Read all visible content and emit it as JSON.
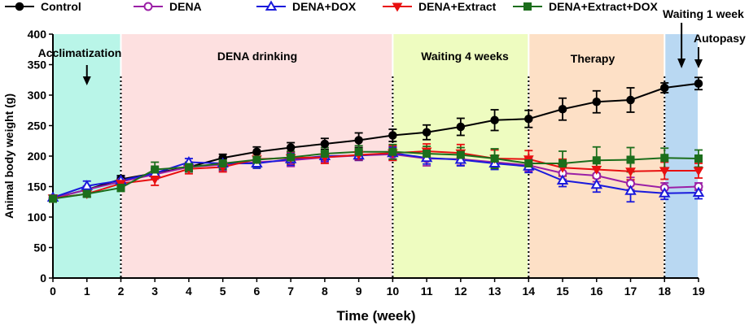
{
  "chart_data": {
    "type": "line",
    "title": "",
    "xlabel": "Time (week)",
    "ylabel": "Animal body weight (g)",
    "xlim": [
      0,
      19
    ],
    "ylim": [
      0,
      400
    ],
    "x_ticks": [
      0,
      1,
      2,
      3,
      4,
      5,
      6,
      7,
      8,
      9,
      10,
      11,
      12,
      13,
      14,
      15,
      16,
      17,
      18,
      19
    ],
    "y_ticks": [
      0,
      50,
      100,
      150,
      200,
      250,
      300,
      350,
      400
    ],
    "x": [
      0,
      1,
      2,
      3,
      4,
      5,
      6,
      7,
      8,
      9,
      10,
      11,
      12,
      13,
      14,
      15,
      16,
      17,
      18,
      19
    ],
    "phases": [
      {
        "label": "Acclimatization",
        "start": 0,
        "end": 2,
        "color": "#b9f5e8"
      },
      {
        "label": "DENA drinking",
        "start": 2,
        "end": 10,
        "color": "#fde0e0"
      },
      {
        "label": "Waiting 4 weeks",
        "start": 10,
        "end": 14,
        "color": "#eefcc0"
      },
      {
        "label": "Therapy",
        "start": 14,
        "end": 18,
        "color": "#fde0c6"
      },
      {
        "label": "",
        "start": 18,
        "end": 19,
        "color": "#b9d8f2"
      }
    ],
    "phase_dividers": [
      2,
      10,
      14,
      18
    ],
    "annotations": [
      {
        "text": "Waiting 1 week",
        "x": 18.5
      },
      {
        "text": "Autopasy",
        "x": 19
      }
    ],
    "series": [
      {
        "name": "Control",
        "color": "#000000",
        "marker": "circle",
        "values": [
          131,
          145,
          162,
          172,
          182,
          197,
          207,
          214,
          220,
          226,
          234,
          239,
          248,
          259,
          261,
          277,
          289,
          292,
          312,
          319
        ],
        "errors": [
          4,
          5,
          6,
          6,
          6,
          6,
          8,
          8,
          9,
          12,
          10,
          12,
          14,
          17,
          14,
          18,
          18,
          20,
          8,
          10
        ]
      },
      {
        "name": "DENA",
        "color": "#9b1fa6",
        "marker": "open-circle",
        "values": [
          131,
          145,
          158,
          170,
          182,
          186,
          190,
          193,
          198,
          201,
          203,
          196,
          195,
          190,
          185,
          172,
          168,
          155,
          148,
          150
        ],
        "errors": [
          4,
          6,
          6,
          8,
          8,
          10,
          8,
          10,
          8,
          8,
          10,
          12,
          10,
          10,
          10,
          10,
          10,
          10,
          8,
          6
        ]
      },
      {
        "name": "DENA+DOX",
        "color": "#1a1adc",
        "marker": "open-triangle-up",
        "values": [
          132,
          151,
          160,
          172,
          190,
          188,
          188,
          195,
          200,
          201,
          205,
          197,
          194,
          188,
          183,
          160,
          153,
          143,
          139,
          140
        ],
        "errors": [
          4,
          8,
          6,
          8,
          6,
          8,
          8,
          10,
          8,
          8,
          10,
          10,
          10,
          10,
          10,
          10,
          12,
          18,
          10,
          10
        ]
      },
      {
        "name": "DENA+Extract",
        "color": "#e81010",
        "marker": "filled-triangle-down",
        "values": [
          131,
          138,
          155,
          162,
          179,
          182,
          195,
          197,
          198,
          202,
          205,
          208,
          205,
          196,
          195,
          181,
          178,
          175,
          176,
          176
        ],
        "errors": [
          4,
          5,
          6,
          10,
          8,
          8,
          8,
          10,
          10,
          8,
          12,
          12,
          14,
          14,
          14,
          14,
          14,
          14,
          14,
          12
        ]
      },
      {
        "name": "DENA+Extract+DOX",
        "color": "#1c6e1c",
        "marker": "filled-square",
        "values": [
          130,
          138,
          148,
          178,
          182,
          188,
          194,
          198,
          204,
          207,
          207,
          204,
          202,
          196,
          188,
          188,
          193,
          194,
          197,
          196
        ],
        "errors": [
          4,
          5,
          6,
          12,
          8,
          10,
          12,
          10,
          10,
          10,
          12,
          12,
          12,
          16,
          10,
          20,
          22,
          20,
          16,
          14
        ]
      }
    ]
  }
}
